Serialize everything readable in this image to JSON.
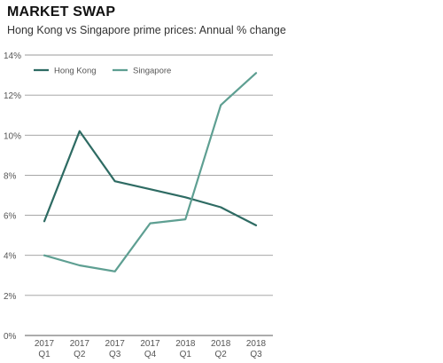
{
  "header": {
    "title": "MARKET SWAP",
    "subtitle": "Hong Kong vs Singapore prime prices: Annual % change"
  },
  "chart_data": {
    "type": "line",
    "title": "MARKET SWAP",
    "subtitle": "Hong Kong vs Singapore prime prices: Annual % change",
    "xlabel": "",
    "ylabel": "",
    "x": [
      [
        "2017",
        "Q1"
      ],
      [
        "2017",
        "Q2"
      ],
      [
        "2017",
        "Q3"
      ],
      [
        "2017",
        "Q4"
      ],
      [
        "2018",
        "Q1"
      ],
      [
        "2018",
        "Q2"
      ],
      [
        "2018",
        "Q3"
      ]
    ],
    "ylim": [
      0,
      14
    ],
    "yticks": [
      0,
      2,
      4,
      6,
      8,
      10,
      12,
      14
    ],
    "ytick_labels": [
      "0%",
      "2%",
      "4%",
      "6%",
      "8%",
      "10%",
      "12%",
      "14%"
    ],
    "grid": "horizontal",
    "legend_position": "top-left",
    "series": [
      {
        "name": "Hong Kong",
        "color": "#2e6b63",
        "values": [
          5.7,
          10.2,
          7.7,
          7.3,
          6.9,
          6.4,
          5.5
        ]
      },
      {
        "name": "Singapore",
        "color": "#5e9f92",
        "values": [
          4.0,
          3.5,
          3.2,
          5.6,
          5.8,
          11.5,
          13.1
        ]
      }
    ]
  }
}
